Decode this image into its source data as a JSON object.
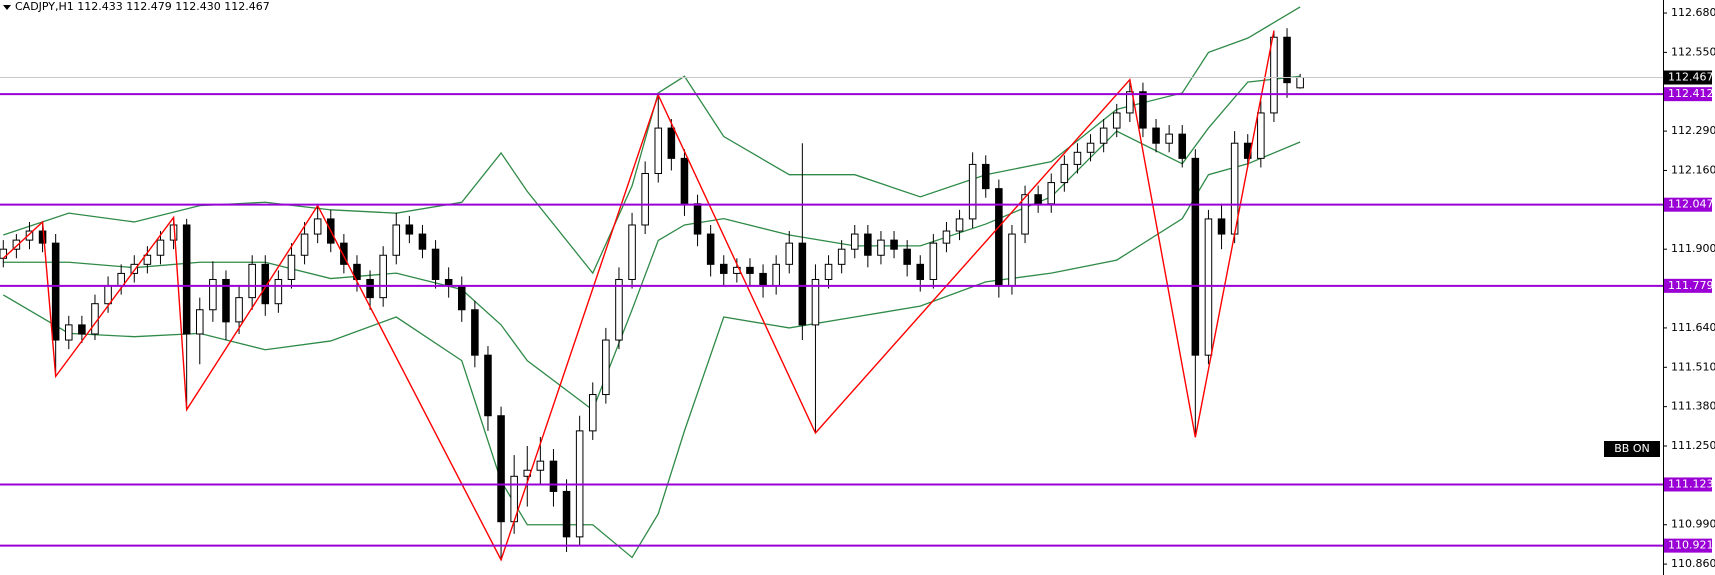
{
  "chart_data": {
    "type": "candlestick",
    "title": "CADJPY,H1  112.433 112.479 112.430 112.467",
    "annotation": "BB ON",
    "ylim": [
      110.824,
      112.723
    ],
    "xlim": [
      -0.25,
      126.7
    ],
    "yticks": [
      {
        "value": 112.68,
        "label": "112.680"
      },
      {
        "value": 112.55,
        "label": "112.550"
      },
      {
        "value": 112.29,
        "label": "112.290"
      },
      {
        "value": 112.16,
        "label": "112.160"
      },
      {
        "value": 111.9,
        "label": "111.900"
      },
      {
        "value": 111.64,
        "label": "111.640"
      },
      {
        "value": 111.51,
        "label": "111.510"
      },
      {
        "value": 111.38,
        "label": "111.380"
      },
      {
        "value": 111.25,
        "label": "111.250"
      },
      {
        "value": 110.99,
        "label": "110.990"
      },
      {
        "value": 110.86,
        "label": "110.860"
      }
    ],
    "candle_colors": {
      "up": "#ffffff",
      "down": "#000000",
      "outline": "#000000"
    },
    "candles": [
      [
        111.87,
        111.93,
        111.84,
        111.9
      ],
      [
        111.9,
        111.95,
        111.87,
        111.93
      ],
      [
        111.93,
        111.99,
        111.9,
        111.96
      ],
      [
        111.96,
        111.99,
        111.89,
        111.92
      ],
      [
        111.92,
        111.95,
        111.48,
        111.6
      ],
      [
        111.6,
        111.68,
        111.57,
        111.65
      ],
      [
        111.65,
        111.68,
        111.59,
        111.62
      ],
      [
        111.62,
        111.75,
        111.6,
        111.72
      ],
      [
        111.72,
        111.81,
        111.69,
        111.78
      ],
      [
        111.78,
        111.85,
        111.75,
        111.82
      ],
      [
        111.82,
        111.88,
        111.79,
        111.85
      ],
      [
        111.85,
        111.91,
        111.82,
        111.88
      ],
      [
        111.88,
        111.96,
        111.85,
        111.93
      ],
      [
        111.93,
        112.005,
        111.9,
        111.98
      ],
      [
        111.98,
        112.0,
        111.37,
        111.62
      ],
      [
        111.62,
        111.74,
        111.52,
        111.7
      ],
      [
        111.7,
        111.86,
        111.66,
        111.8
      ],
      [
        111.8,
        111.83,
        111.6,
        111.66
      ],
      [
        111.66,
        111.78,
        111.62,
        111.74
      ],
      [
        111.74,
        111.88,
        111.7,
        111.85
      ],
      [
        111.85,
        111.88,
        111.68,
        111.72
      ],
      [
        111.72,
        111.83,
        111.69,
        111.8
      ],
      [
        111.8,
        111.92,
        111.77,
        111.88
      ],
      [
        111.88,
        111.99,
        111.85,
        111.95
      ],
      [
        111.95,
        112.044,
        111.92,
        112.0
      ],
      [
        112.0,
        112.03,
        111.89,
        111.92
      ],
      [
        111.92,
        111.95,
        111.82,
        111.85
      ],
      [
        111.85,
        111.88,
        111.76,
        111.8
      ],
      [
        111.8,
        111.83,
        111.7,
        111.74
      ],
      [
        111.74,
        111.91,
        111.71,
        111.88
      ],
      [
        111.88,
        112.02,
        111.85,
        111.98
      ],
      [
        111.98,
        112.01,
        111.92,
        111.95
      ],
      [
        111.95,
        111.98,
        111.87,
        111.9
      ],
      [
        111.9,
        111.93,
        111.77,
        111.8
      ],
      [
        111.8,
        111.84,
        111.74,
        111.78
      ],
      [
        111.78,
        111.81,
        111.66,
        111.7
      ],
      [
        111.7,
        111.73,
        111.51,
        111.55
      ],
      [
        111.55,
        111.58,
        111.3,
        111.35
      ],
      [
        111.35,
        111.38,
        110.874,
        111.0
      ],
      [
        111.0,
        111.22,
        110.96,
        111.15
      ],
      [
        111.15,
        111.25,
        111.05,
        111.17
      ],
      [
        111.17,
        111.28,
        111.12,
        111.2
      ],
      [
        111.2,
        111.24,
        111.05,
        111.1
      ],
      [
        111.1,
        111.14,
        110.9,
        110.95
      ],
      [
        110.95,
        111.35,
        110.92,
        111.3
      ],
      [
        111.3,
        111.46,
        111.27,
        111.42
      ],
      [
        111.42,
        111.64,
        111.39,
        111.6
      ],
      [
        111.6,
        111.84,
        111.57,
        111.8
      ],
      [
        111.8,
        112.02,
        111.77,
        111.98
      ],
      [
        111.98,
        112.19,
        111.95,
        112.15
      ],
      [
        112.15,
        112.409,
        112.12,
        112.3
      ],
      [
        112.3,
        112.33,
        112.16,
        112.2
      ],
      [
        112.2,
        112.23,
        112.01,
        112.05
      ],
      [
        112.05,
        112.08,
        111.91,
        111.95
      ],
      [
        111.95,
        111.98,
        111.81,
        111.85
      ],
      [
        111.85,
        111.88,
        111.78,
        111.82
      ],
      [
        111.82,
        111.87,
        111.79,
        111.84
      ],
      [
        111.84,
        111.87,
        111.78,
        111.82
      ],
      [
        111.82,
        111.85,
        111.74,
        111.78
      ],
      [
        111.78,
        111.88,
        111.75,
        111.85
      ],
      [
        111.85,
        111.96,
        111.82,
        111.92
      ],
      [
        111.92,
        112.25,
        111.6,
        111.65
      ],
      [
        111.65,
        111.85,
        111.293,
        111.8
      ],
      [
        111.8,
        111.88,
        111.77,
        111.85
      ],
      [
        111.85,
        111.93,
        111.82,
        111.9
      ],
      [
        111.9,
        111.98,
        111.87,
        111.95
      ],
      [
        111.95,
        111.98,
        111.84,
        111.88
      ],
      [
        111.88,
        111.96,
        111.85,
        111.93
      ],
      [
        111.93,
        111.96,
        111.87,
        111.9
      ],
      [
        111.9,
        111.93,
        111.81,
        111.85
      ],
      [
        111.85,
        111.88,
        111.76,
        111.8
      ],
      [
        111.8,
        111.95,
        111.77,
        111.92
      ],
      [
        111.92,
        111.99,
        111.89,
        111.96
      ],
      [
        111.96,
        112.03,
        111.93,
        112.0
      ],
      [
        112.0,
        112.22,
        111.97,
        112.18
      ],
      [
        112.18,
        112.21,
        112.07,
        112.1
      ],
      [
        112.1,
        112.13,
        111.74,
        111.78
      ],
      [
        111.78,
        111.98,
        111.75,
        111.95
      ],
      [
        111.95,
        112.11,
        111.92,
        112.08
      ],
      [
        112.08,
        112.11,
        112.02,
        112.05
      ],
      [
        112.05,
        112.15,
        112.02,
        112.12
      ],
      [
        112.12,
        112.21,
        112.09,
        112.18
      ],
      [
        112.18,
        112.25,
        112.15,
        112.22
      ],
      [
        112.22,
        112.28,
        112.19,
        112.25
      ],
      [
        112.25,
        112.33,
        112.22,
        112.3
      ],
      [
        112.3,
        112.38,
        112.27,
        112.35
      ],
      [
        112.35,
        112.46,
        112.32,
        112.42
      ],
      [
        112.42,
        112.45,
        112.27,
        112.3
      ],
      [
        112.3,
        112.33,
        112.22,
        112.25
      ],
      [
        112.25,
        112.31,
        112.22,
        112.28
      ],
      [
        112.28,
        112.31,
        112.17,
        112.2
      ],
      [
        112.2,
        112.23,
        111.279,
        111.55
      ],
      [
        111.55,
        112.03,
        111.52,
        112.0
      ],
      [
        112.0,
        112.05,
        111.9,
        111.95
      ],
      [
        111.95,
        112.29,
        111.92,
        112.25
      ],
      [
        112.25,
        112.28,
        112.17,
        112.2
      ],
      [
        112.2,
        112.39,
        112.17,
        112.35
      ],
      [
        112.35,
        112.622,
        112.32,
        112.6
      ],
      [
        112.6,
        112.63,
        112.4,
        112.45
      ],
      [
        112.433,
        112.479,
        112.43,
        112.467
      ]
    ],
    "bands_x": [
      0,
      5,
      10,
      15,
      20,
      25,
      30,
      35,
      38,
      40,
      45,
      48,
      50,
      52,
      55,
      60,
      65,
      70,
      75,
      80,
      85,
      90,
      92,
      95,
      99
    ],
    "bands": [
      {
        "color": "#2f8a48",
        "values": [
          111.947,
          112.019,
          111.99,
          112.044,
          112.055,
          112.03,
          112.019,
          112.055,
          112.218,
          112.091,
          111.821,
          112.109,
          112.416,
          112.471,
          112.272,
          112.146,
          112.146,
          112.073,
          112.146,
          112.189,
          112.362,
          112.416,
          112.55,
          112.597,
          112.7
        ]
      },
      {
        "color": "#2f8a48",
        "values": [
          111.857,
          111.857,
          111.839,
          111.857,
          111.857,
          111.803,
          111.821,
          111.767,
          111.65,
          111.532,
          111.369,
          111.7,
          111.929,
          111.98,
          112.001,
          111.947,
          111.911,
          111.911,
          111.983,
          112.073,
          112.29,
          112.182,
          112.3,
          112.452,
          112.471
        ]
      },
      {
        "color": "#2f8a48",
        "values": [
          111.749,
          111.622,
          111.611,
          111.622,
          111.568,
          111.597,
          111.676,
          111.532,
          111.134,
          110.99,
          110.99,
          110.882,
          111.026,
          111.3,
          111.676,
          111.64,
          111.676,
          111.712,
          111.792,
          111.821,
          111.864,
          112.001,
          112.146,
          112.182,
          112.254
        ]
      }
    ],
    "zigzag": {
      "color": "#ff0000",
      "x": [
        0,
        3,
        4,
        13,
        14,
        24,
        38,
        50,
        62,
        86,
        91,
        97
      ],
      "values": [
        111.87,
        111.99,
        111.48,
        112.005,
        111.37,
        112.044,
        110.874,
        112.409,
        111.293,
        112.46,
        111.279,
        112.622
      ]
    },
    "levels_color": "#9a00d6",
    "levels": [
      112.412,
      112.047,
      111.779,
      111.123,
      110.921
    ],
    "current_price": 112.467
  }
}
